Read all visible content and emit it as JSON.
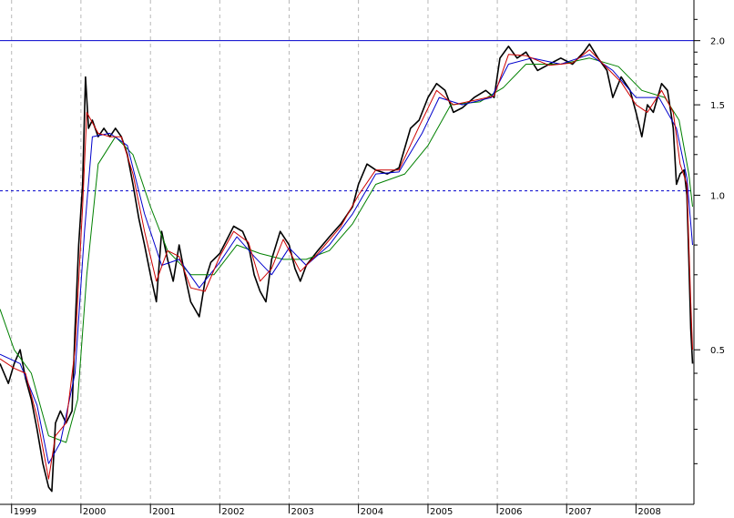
{
  "chart_data": {
    "type": "line",
    "title": "",
    "xlabel": "",
    "ylabel": "",
    "y_scale": "log",
    "ylim": [
      0.25,
      2.4
    ],
    "xlim": [
      "1998-11-01",
      "2008-11-01"
    ],
    "grid": {
      "vertical": true,
      "horizontal": false,
      "style": "dashed"
    },
    "x_ticks": [
      {
        "label": "1999",
        "date": "1999-01-01"
      },
      {
        "label": "2000",
        "date": "2000-01-01"
      },
      {
        "label": "2001",
        "date": "2001-01-01"
      },
      {
        "label": "2002",
        "date": "2002-01-01"
      },
      {
        "label": "2003",
        "date": "2003-01-01"
      },
      {
        "label": "2004",
        "date": "2004-01-01"
      },
      {
        "label": "2005",
        "date": "2005-01-01"
      },
      {
        "label": "2006",
        "date": "2006-01-01"
      },
      {
        "label": "2007",
        "date": "2007-01-01"
      },
      {
        "label": "2008",
        "date": "2008-01-01"
      }
    ],
    "y_ticks": [
      {
        "label": "2.0",
        "value": 2.0
      },
      {
        "label": "1.5",
        "value": 1.5
      },
      {
        "label": "1.0",
        "value": 1.0
      },
      {
        "label": "0.5",
        "value": 0.5
      }
    ],
    "reference_lines": [
      {
        "value": 2.0,
        "style": "solid",
        "color": "#0000cc"
      },
      {
        "value": 1.02,
        "style": "dashed",
        "color": "#0000cc"
      }
    ],
    "series": [
      {
        "color": "#000000",
        "points": [
          [
            "1998-11-01",
            0.47
          ],
          [
            "1998-12-15",
            0.43
          ],
          [
            "1999-01-15",
            0.47
          ],
          [
            "1999-02-15",
            0.5
          ],
          [
            "1999-03-15",
            0.44
          ],
          [
            "1999-04-15",
            0.4
          ],
          [
            "1999-05-15",
            0.35
          ],
          [
            "1999-06-15",
            0.3
          ],
          [
            "1999-07-15",
            0.27
          ],
          [
            "1999-08-01",
            0.265
          ],
          [
            "1999-08-20",
            0.36
          ],
          [
            "1999-09-15",
            0.38
          ],
          [
            "1999-10-15",
            0.36
          ],
          [
            "1999-11-15",
            0.38
          ],
          [
            "1999-12-01",
            0.55
          ],
          [
            "1999-12-20",
            0.8
          ],
          [
            "2000-01-10",
            1.05
          ],
          [
            "2000-01-25",
            1.7
          ],
          [
            "2000-02-10",
            1.35
          ],
          [
            "2000-03-01",
            1.4
          ],
          [
            "2000-04-01",
            1.3
          ],
          [
            "2000-05-01",
            1.35
          ],
          [
            "2000-06-01",
            1.3
          ],
          [
            "2000-07-01",
            1.35
          ],
          [
            "2000-08-01",
            1.3
          ],
          [
            "2000-09-01",
            1.2
          ],
          [
            "2000-10-01",
            1.05
          ],
          [
            "2000-11-01",
            0.9
          ],
          [
            "2000-12-01",
            0.8
          ],
          [
            "2001-01-01",
            0.7
          ],
          [
            "2001-02-01",
            0.62
          ],
          [
            "2001-03-01",
            0.85
          ],
          [
            "2001-04-01",
            0.75
          ],
          [
            "2001-05-01",
            0.68
          ],
          [
            "2001-06-01",
            0.8
          ],
          [
            "2001-07-01",
            0.7
          ],
          [
            "2001-08-01",
            0.62
          ],
          [
            "2001-09-15",
            0.58
          ],
          [
            "2001-10-15",
            0.68
          ],
          [
            "2001-11-15",
            0.74
          ],
          [
            "2002-01-01",
            0.77
          ],
          [
            "2002-02-15",
            0.83
          ],
          [
            "2002-03-15",
            0.87
          ],
          [
            "2002-05-01",
            0.85
          ],
          [
            "2002-06-01",
            0.8
          ],
          [
            "2002-07-01",
            0.7
          ],
          [
            "2002-08-01",
            0.65
          ],
          [
            "2002-09-01",
            0.62
          ],
          [
            "2002-10-01",
            0.75
          ],
          [
            "2002-11-15",
            0.85
          ],
          [
            "2003-01-01",
            0.8
          ],
          [
            "2003-02-01",
            0.72
          ],
          [
            "2003-03-01",
            0.68
          ],
          [
            "2003-04-01",
            0.73
          ],
          [
            "2003-06-01",
            0.78
          ],
          [
            "2003-08-01",
            0.83
          ],
          [
            "2003-10-01",
            0.88
          ],
          [
            "2003-12-01",
            0.95
          ],
          [
            "2004-01-01",
            1.05
          ],
          [
            "2004-02-15",
            1.15
          ],
          [
            "2004-04-01",
            1.12
          ],
          [
            "2004-06-01",
            1.1
          ],
          [
            "2004-08-01",
            1.13
          ],
          [
            "2004-10-01",
            1.35
          ],
          [
            "2004-11-15",
            1.4
          ],
          [
            "2005-01-01",
            1.55
          ],
          [
            "2005-02-15",
            1.65
          ],
          [
            "2005-04-01",
            1.6
          ],
          [
            "2005-05-15",
            1.45
          ],
          [
            "2005-07-01",
            1.48
          ],
          [
            "2005-09-01",
            1.55
          ],
          [
            "2005-11-01",
            1.6
          ],
          [
            "2005-12-15",
            1.55
          ],
          [
            "2006-01-15",
            1.85
          ],
          [
            "2006-03-01",
            1.95
          ],
          [
            "2006-04-15",
            1.85
          ],
          [
            "2006-06-01",
            1.9
          ],
          [
            "2006-08-01",
            1.75
          ],
          [
            "2006-10-01",
            1.8
          ],
          [
            "2006-12-01",
            1.85
          ],
          [
            "2007-02-01",
            1.8
          ],
          [
            "2007-04-01",
            1.9
          ],
          [
            "2007-05-01",
            1.97
          ],
          [
            "2007-06-15",
            1.85
          ],
          [
            "2007-08-01",
            1.75
          ],
          [
            "2007-09-01",
            1.55
          ],
          [
            "2007-10-15",
            1.7
          ],
          [
            "2007-12-01",
            1.6
          ],
          [
            "2008-01-01",
            1.45
          ],
          [
            "2008-02-01",
            1.3
          ],
          [
            "2008-03-01",
            1.5
          ],
          [
            "2008-04-01",
            1.45
          ],
          [
            "2008-05-15",
            1.65
          ],
          [
            "2008-06-15",
            1.6
          ],
          [
            "2008-07-15",
            1.35
          ],
          [
            "2008-08-01",
            1.05
          ],
          [
            "2008-08-20",
            1.1
          ],
          [
            "2008-09-10",
            1.12
          ],
          [
            "2008-09-25",
            1.0
          ],
          [
            "2008-10-05",
            0.75
          ],
          [
            "2008-10-15",
            0.55
          ],
          [
            "2008-10-25",
            0.47
          ]
        ]
      },
      {
        "color": "#cc0000",
        "points": [
          [
            "1998-11-01",
            0.48
          ],
          [
            "1999-01-15",
            0.46
          ],
          [
            "1999-03-15",
            0.45
          ],
          [
            "1999-05-15",
            0.37
          ],
          [
            "1999-07-15",
            0.28
          ],
          [
            "1999-08-20",
            0.34
          ],
          [
            "1999-10-15",
            0.36
          ],
          [
            "1999-12-01",
            0.5
          ],
          [
            "2000-01-10",
            0.95
          ],
          [
            "2000-02-01",
            1.45
          ],
          [
            "2000-04-01",
            1.32
          ],
          [
            "2000-06-01",
            1.3
          ],
          [
            "2000-08-01",
            1.3
          ],
          [
            "2000-10-01",
            1.1
          ],
          [
            "2000-12-01",
            0.85
          ],
          [
            "2001-02-01",
            0.68
          ],
          [
            "2001-04-01",
            0.78
          ],
          [
            "2001-06-01",
            0.76
          ],
          [
            "2001-08-01",
            0.66
          ],
          [
            "2001-10-15",
            0.65
          ],
          [
            "2002-01-01",
            0.76
          ],
          [
            "2002-03-15",
            0.85
          ],
          [
            "2002-06-01",
            0.81
          ],
          [
            "2002-08-01",
            0.68
          ],
          [
            "2002-10-01",
            0.72
          ],
          [
            "2002-12-01",
            0.82
          ],
          [
            "2003-03-01",
            0.71
          ],
          [
            "2003-06-01",
            0.77
          ],
          [
            "2003-10-01",
            0.87
          ],
          [
            "2004-01-01",
            1.0
          ],
          [
            "2004-04-01",
            1.12
          ],
          [
            "2004-08-01",
            1.12
          ],
          [
            "2004-11-15",
            1.36
          ],
          [
            "2005-02-15",
            1.6
          ],
          [
            "2005-05-15",
            1.5
          ],
          [
            "2005-09-01",
            1.53
          ],
          [
            "2005-12-15",
            1.56
          ],
          [
            "2006-03-01",
            1.88
          ],
          [
            "2006-06-01",
            1.87
          ],
          [
            "2006-10-01",
            1.79
          ],
          [
            "2007-02-01",
            1.81
          ],
          [
            "2007-05-01",
            1.92
          ],
          [
            "2007-08-01",
            1.77
          ],
          [
            "2007-10-15",
            1.66
          ],
          [
            "2008-01-01",
            1.5
          ],
          [
            "2008-03-01",
            1.45
          ],
          [
            "2008-05-15",
            1.6
          ],
          [
            "2008-07-15",
            1.45
          ],
          [
            "2008-08-20",
            1.15
          ],
          [
            "2008-09-25",
            1.05
          ],
          [
            "2008-10-15",
            0.62
          ],
          [
            "2008-10-25",
            0.5
          ]
        ]
      },
      {
        "color": "#0000cc",
        "points": [
          [
            "1998-11-01",
            0.49
          ],
          [
            "1999-02-15",
            0.47
          ],
          [
            "1999-05-15",
            0.39
          ],
          [
            "1999-07-15",
            0.3
          ],
          [
            "1999-09-15",
            0.33
          ],
          [
            "1999-12-01",
            0.45
          ],
          [
            "2000-01-20",
            0.85
          ],
          [
            "2000-03-01",
            1.3
          ],
          [
            "2000-06-01",
            1.32
          ],
          [
            "2000-09-01",
            1.25
          ],
          [
            "2000-12-01",
            0.92
          ],
          [
            "2001-03-01",
            0.73
          ],
          [
            "2001-06-01",
            0.75
          ],
          [
            "2001-09-15",
            0.66
          ],
          [
            "2002-01-01",
            0.74
          ],
          [
            "2002-04-01",
            0.83
          ],
          [
            "2002-07-01",
            0.76
          ],
          [
            "2002-10-01",
            0.7
          ],
          [
            "2003-01-01",
            0.79
          ],
          [
            "2003-04-01",
            0.73
          ],
          [
            "2003-08-01",
            0.8
          ],
          [
            "2003-12-01",
            0.92
          ],
          [
            "2004-04-01",
            1.1
          ],
          [
            "2004-08-01",
            1.11
          ],
          [
            "2004-12-01",
            1.32
          ],
          [
            "2005-03-01",
            1.55
          ],
          [
            "2005-07-01",
            1.5
          ],
          [
            "2005-12-01",
            1.55
          ],
          [
            "2006-03-01",
            1.8
          ],
          [
            "2006-07-01",
            1.85
          ],
          [
            "2006-12-01",
            1.8
          ],
          [
            "2007-05-01",
            1.88
          ],
          [
            "2007-09-01",
            1.75
          ],
          [
            "2008-01-01",
            1.55
          ],
          [
            "2008-05-01",
            1.55
          ],
          [
            "2008-08-01",
            1.35
          ],
          [
            "2008-09-25",
            1.08
          ],
          [
            "2008-10-25",
            0.8
          ]
        ]
      },
      {
        "color": "#008000",
        "points": [
          [
            "1998-11-01",
            0.6
          ],
          [
            "1999-01-15",
            0.5
          ],
          [
            "1999-04-15",
            0.45
          ],
          [
            "1999-07-15",
            0.34
          ],
          [
            "1999-10-15",
            0.33
          ],
          [
            "1999-12-15",
            0.4
          ],
          [
            "2000-02-01",
            0.7
          ],
          [
            "2000-04-01",
            1.15
          ],
          [
            "2000-07-01",
            1.3
          ],
          [
            "2000-10-01",
            1.2
          ],
          [
            "2001-01-01",
            0.95
          ],
          [
            "2001-04-01",
            0.78
          ],
          [
            "2001-08-01",
            0.7
          ],
          [
            "2001-12-01",
            0.7
          ],
          [
            "2002-04-01",
            0.8
          ],
          [
            "2002-08-01",
            0.77
          ],
          [
            "2002-12-01",
            0.75
          ],
          [
            "2003-04-01",
            0.75
          ],
          [
            "2003-08-01",
            0.78
          ],
          [
            "2003-12-01",
            0.88
          ],
          [
            "2004-04-01",
            1.05
          ],
          [
            "2004-09-01",
            1.1
          ],
          [
            "2005-01-01",
            1.25
          ],
          [
            "2005-05-01",
            1.5
          ],
          [
            "2005-10-01",
            1.52
          ],
          [
            "2006-02-01",
            1.62
          ],
          [
            "2006-06-01",
            1.8
          ],
          [
            "2006-12-01",
            1.8
          ],
          [
            "2007-05-01",
            1.85
          ],
          [
            "2007-10-01",
            1.78
          ],
          [
            "2008-02-01",
            1.6
          ],
          [
            "2008-06-01",
            1.55
          ],
          [
            "2008-08-15",
            1.4
          ],
          [
            "2008-10-05",
            1.1
          ],
          [
            "2008-10-25",
            0.95
          ]
        ]
      }
    ]
  }
}
